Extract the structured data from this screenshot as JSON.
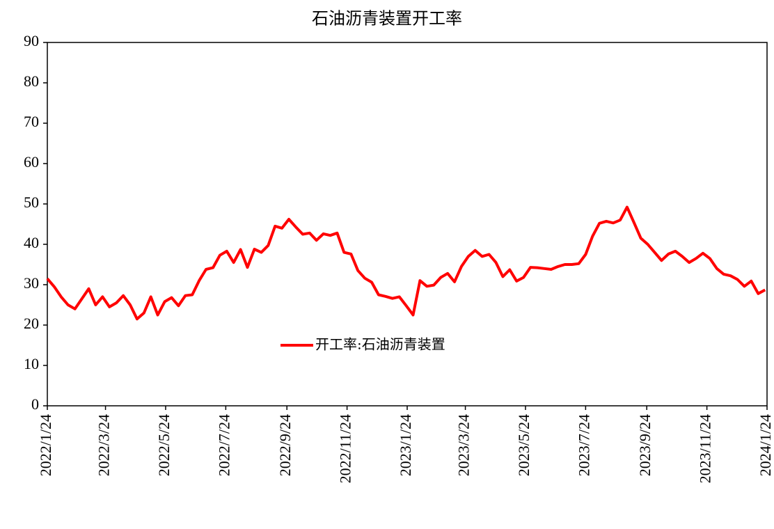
{
  "chart_data": {
    "type": "line",
    "title": "石油沥青装置开工率",
    "x": [
      "2022/1/24",
      "2022/1/31",
      "2022/2/7",
      "2022/2/14",
      "2022/2/21",
      "2022/2/28",
      "2022/3/7",
      "2022/3/14",
      "2022/3/21",
      "2022/3/28",
      "2022/4/4",
      "2022/4/11",
      "2022/4/18",
      "2022/4/25",
      "2022/5/2",
      "2022/5/9",
      "2022/5/16",
      "2022/5/23",
      "2022/5/30",
      "2022/6/6",
      "2022/6/13",
      "2022/6/20",
      "2022/6/27",
      "2022/7/4",
      "2022/7/11",
      "2022/7/18",
      "2022/7/25",
      "2022/8/1",
      "2022/8/8",
      "2022/8/15",
      "2022/8/22",
      "2022/8/29",
      "2022/9/5",
      "2022/9/12",
      "2022/9/19",
      "2022/9/26",
      "2022/10/3",
      "2022/10/10",
      "2022/10/17",
      "2022/10/24",
      "2022/10/31",
      "2022/11/7",
      "2022/11/14",
      "2022/11/21",
      "2022/11/28",
      "2022/12/5",
      "2022/12/12",
      "2022/12/19",
      "2022/12/26",
      "2023/1/2",
      "2023/1/9",
      "2023/1/16",
      "2023/1/23",
      "2023/1/30",
      "2023/2/6",
      "2023/2/13",
      "2023/2/20",
      "2023/2/27",
      "2023/3/6",
      "2023/3/13",
      "2023/3/20",
      "2023/3/27",
      "2023/4/3",
      "2023/4/10",
      "2023/4/17",
      "2023/4/24",
      "2023/5/1",
      "2023/5/8",
      "2023/5/15",
      "2023/5/22",
      "2023/5/29",
      "2023/6/5",
      "2023/6/12",
      "2023/6/19",
      "2023/6/26",
      "2023/7/3",
      "2023/7/10",
      "2023/7/17",
      "2023/7/24",
      "2023/7/31",
      "2023/8/7",
      "2023/8/14",
      "2023/8/21",
      "2023/8/28",
      "2023/9/4",
      "2023/9/11",
      "2023/9/18",
      "2023/9/25",
      "2023/10/2",
      "2023/10/9",
      "2023/10/16",
      "2023/10/23",
      "2023/10/30",
      "2023/11/6",
      "2023/11/13",
      "2023/11/20",
      "2023/11/27",
      "2023/12/4",
      "2023/12/11",
      "2023/12/18",
      "2023/12/25",
      "2024/1/1",
      "2024/1/8",
      "2024/1/15",
      "2024/1/22"
    ],
    "series": [
      {
        "name": "开工率:石油沥青装置",
        "color": "#ff0000",
        "values": [
          31.5,
          29.5,
          27,
          25,
          24,
          26.5,
          29,
          25,
          27,
          24.5,
          25.5,
          27.3,
          25,
          21.5,
          23,
          27,
          22.5,
          25.8,
          26.8,
          24.8,
          27.3,
          27.5,
          31,
          33.8,
          34.2,
          37.3,
          38.3,
          35.5,
          38.7,
          34.3,
          38.8,
          38,
          39.7,
          44.5,
          44,
          46.2,
          44.3,
          42.5,
          42.8,
          41,
          42.6,
          42.2,
          42.8,
          38,
          37.6,
          33.5,
          31.6,
          30.6,
          27.5,
          27.1,
          26.6,
          27,
          24.8,
          22.5,
          31,
          29.6,
          29.9,
          31.8,
          32.8,
          30.7,
          34.5,
          37,
          38.5,
          37,
          37.5,
          35.5,
          32,
          33.7,
          30.9,
          31.8,
          34.3,
          34.2,
          34,
          33.8,
          34.5,
          35,
          35,
          35.2,
          37.5,
          42,
          45.2,
          45.7,
          45.3,
          46,
          49.2,
          45.4,
          41.5,
          40,
          38,
          36,
          37.6,
          38.3,
          37,
          35.5,
          36.5,
          37.8,
          36.5,
          34,
          32.6,
          32.2,
          31.3,
          29.6,
          30.9,
          27.8,
          28.7
        ]
      }
    ],
    "xlim": [
      "2022/1/24",
      "2024/1/24"
    ],
    "xticks": [
      "2022/1/24",
      "2022/3/24",
      "2022/5/24",
      "2022/7/24",
      "2022/9/24",
      "2022/11/24",
      "2023/1/24",
      "2023/3/24",
      "2023/5/24",
      "2023/7/24",
      "2023/9/24",
      "2023/11/24",
      "2024/1/24"
    ],
    "ylim": [
      0,
      90
    ],
    "yticks": [
      0,
      10,
      20,
      30,
      40,
      50,
      60,
      70,
      80,
      90
    ],
    "legend": "center"
  }
}
